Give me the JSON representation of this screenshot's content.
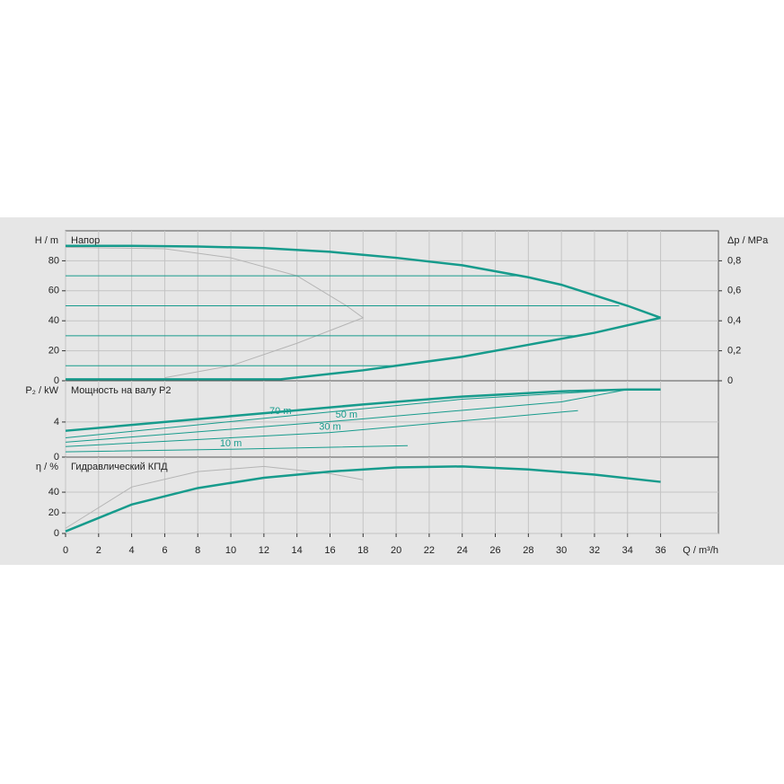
{
  "chart_data": [
    {
      "type": "line",
      "title": "Напор",
      "ylabel": "H / m",
      "y2label": "Δp / MPa",
      "xlim": [
        0,
        39.5
      ],
      "ylim": [
        0,
        100
      ],
      "yticks": [
        0,
        20,
        40,
        60,
        80
      ],
      "y2lim": [
        0,
        1
      ],
      "y2ticks": [
        0,
        {
          "value": 0.2,
          "label": "0,2"
        },
        {
          "value": 0.4,
          "label": "0,4"
        },
        {
          "value": 0.6,
          "label": "0,6"
        },
        {
          "value": 0.8,
          "label": "0,8"
        }
      ],
      "grid": true,
      "series": [
        {
          "color": "#b4b4b4",
          "line_width": 1,
          "x": [
            0,
            6,
            10,
            14,
            17,
            18,
            14,
            10,
            6
          ],
          "values": [
            89,
            88,
            82,
            70,
            50,
            42,
            25,
            10,
            2
          ]
        },
        {
          "color": "#169b8c",
          "line_width": 1,
          "x": [
            0,
            27.5
          ],
          "values": [
            70,
            70
          ]
        },
        {
          "color": "#169b8c",
          "line_width": 1,
          "x": [
            0,
            33.5
          ],
          "values": [
            50,
            50
          ]
        },
        {
          "color": "#169b8c",
          "line_width": 1,
          "x": [
            0,
            31
          ],
          "values": [
            30,
            30
          ]
        },
        {
          "color": "#169b8c",
          "line_width": 1,
          "x": [
            0,
            20
          ],
          "values": [
            10,
            10
          ]
        },
        {
          "color": "#169b8c",
          "line_width": 2.5,
          "x": [
            0,
            4,
            8,
            12,
            16,
            18,
            20,
            24,
            28,
            30,
            32,
            34,
            36
          ],
          "values": [
            90,
            90,
            89.5,
            88.5,
            86,
            84,
            82,
            77,
            69,
            64,
            57,
            50,
            42
          ]
        },
        {
          "color": "#169b8c",
          "line_width": 2.5,
          "x": [
            0,
            13,
            18,
            20,
            24,
            28,
            32,
            36
          ],
          "values": [
            1,
            1,
            7,
            10,
            16,
            24,
            32,
            42
          ]
        }
      ]
    },
    {
      "type": "line",
      "title": "Мощность на валу P2",
      "ylabel": "P₂ / kW",
      "xlim": [
        0,
        39.5
      ],
      "ylim": [
        0,
        8.7
      ],
      "yticks": [
        0,
        4
      ],
      "grid": true,
      "series": [
        {
          "name": "70 m",
          "color": "#169b8c",
          "line_width": 1,
          "x": [
            0,
            13,
            24,
            34
          ],
          "values": [
            2.2,
            4.6,
            6.6,
            7.7
          ]
        },
        {
          "name": "50 m",
          "color": "#169b8c",
          "line_width": 1,
          "x": [
            0,
            17,
            30,
            34
          ],
          "values": [
            1.7,
            4.2,
            6.3,
            7.7
          ]
        },
        {
          "name": "30 m",
          "color": "#169b8c",
          "line_width": 1,
          "x": [
            0,
            16,
            31
          ],
          "values": [
            1.2,
            2.8,
            5.3
          ]
        },
        {
          "name": "10 m",
          "color": "#169b8c",
          "line_width": 1,
          "x": [
            0,
            10,
            20.7
          ],
          "values": [
            0.6,
            0.9,
            1.3
          ]
        },
        {
          "color": "#169b8c",
          "line_width": 2.5,
          "x": [
            0,
            6,
            12,
            18,
            24,
            30,
            34,
            36
          ],
          "values": [
            3.0,
            4.0,
            5.0,
            6.0,
            6.9,
            7.5,
            7.7,
            7.7
          ]
        }
      ]
    },
    {
      "type": "line",
      "title": "Гидравлический КПД",
      "ylabel": "η / %",
      "xlabel": "Q / m³/h",
      "xlim": [
        0,
        39.5
      ],
      "ylim": [
        0,
        74
      ],
      "yticks": [
        0,
        20,
        40
      ],
      "xticks": [
        0,
        2,
        4,
        6,
        8,
        10,
        12,
        14,
        16,
        18,
        20,
        22,
        24,
        26,
        28,
        30,
        32,
        34,
        36
      ],
      "grid": true,
      "series": [
        {
          "color": "#b4b4b4",
          "line_width": 1,
          "x": [
            0,
            4,
            8,
            12,
            16,
            18
          ],
          "values": [
            5,
            45,
            60,
            65,
            58,
            52
          ]
        },
        {
          "color": "#169b8c",
          "line_width": 2.5,
          "x": [
            0,
            4,
            8,
            12,
            16,
            20,
            24,
            28,
            32,
            36
          ],
          "values": [
            2,
            28,
            44,
            54,
            60,
            64,
            65,
            62,
            57,
            50
          ]
        }
      ]
    }
  ]
}
